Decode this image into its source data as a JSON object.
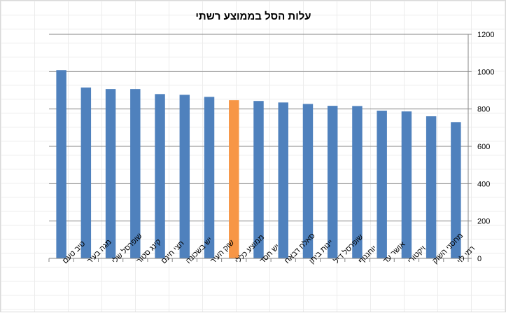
{
  "chart_data": {
    "type": "bar",
    "title": "עלות הסל בממוצע רשתי",
    "xlabel": "",
    "ylabel": "",
    "ylim": [
      0,
      1200
    ],
    "yticks": [
      0,
      200,
      400,
      600,
      800,
      1000,
      1200
    ],
    "y_axis_side": "right",
    "grid": "horizontal",
    "legend": "none",
    "categories": [
      "טיב טעם",
      "מגה בעיר",
      "שופרסל שלי",
      "קינג סטור",
      "חצי חינם",
      "יש בשכונה",
      "שוק העיר",
      "ממוצע כללי",
      "יש חסד",
      "סאלח דבאח",
      "יינות ביתן",
      "שופרסל דיל",
      "יוחננוף",
      "אושר עד",
      "ויקטורי",
      "מחסני השוק",
      "רמי לוי"
    ],
    "series": [
      {
        "values": [
          1008,
          915,
          907,
          907,
          880,
          876,
          865,
          847,
          843,
          835,
          827,
          817,
          816,
          791,
          787,
          761,
          730
        ]
      }
    ],
    "colors": {
      "bar": "#4f81bd",
      "highlight": "#f79646",
      "highlight_category": "ממוצע כללי",
      "grid": "#868686",
      "axis": "#868686"
    }
  }
}
